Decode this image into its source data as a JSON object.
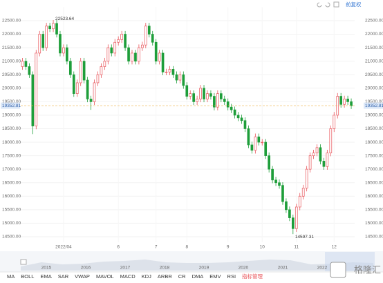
{
  "chart_data": {
    "type": "candlestick",
    "adjust_label": "前复权",
    "up_color": "#e8545a",
    "down_color": "#1e9e3a",
    "ylim": [
      14300,
      23000
    ],
    "yticks": [
      {
        "value": 14500,
        "label": "14500.00"
      },
      {
        "value": 15000,
        "label": "15000.00"
      },
      {
        "value": 15500,
        "label": "15500.00"
      },
      {
        "value": 16000,
        "label": "16000.00"
      },
      {
        "value": 16500,
        "label": "16500.00"
      },
      {
        "value": 17000,
        "label": "17000.00"
      },
      {
        "value": 17500,
        "label": "17500.00"
      },
      {
        "value": 18000,
        "label": "18000.00"
      },
      {
        "value": 18500,
        "label": "18500.00"
      },
      {
        "value": 19000,
        "label": "19000.00"
      },
      {
        "value": 19500,
        "label": "19500.00"
      },
      {
        "value": 20000,
        "label": "20000.00"
      },
      {
        "value": 20500,
        "label": "20500.00"
      },
      {
        "value": 21000,
        "label": "21000.00"
      },
      {
        "value": 21500,
        "label": "21500.00"
      },
      {
        "value": 22000,
        "label": "22000.00"
      },
      {
        "value": 22500,
        "label": "22500.00"
      }
    ],
    "xlim": [
      -0.5,
      97
    ],
    "xticks": [
      {
        "value": 12,
        "label": "2022/04"
      },
      {
        "value": 28,
        "label": "6"
      },
      {
        "value": 39,
        "label": "7"
      },
      {
        "value": 48,
        "label": "8"
      },
      {
        "value": 60,
        "label": "9"
      },
      {
        "value": 70,
        "label": "10"
      },
      {
        "value": 80,
        "label": "11"
      },
      {
        "value": 91,
        "label": "12"
      }
    ],
    "last_price": 19352.81,
    "high_index": 9,
    "low_index": 79,
    "ohlc": [
      [
        20800,
        21120,
        20680,
        21000
      ],
      [
        21000,
        21120,
        20680,
        20800
      ],
      [
        20800,
        20920,
        20380,
        20500
      ],
      [
        20500,
        20620,
        18300,
        18600
      ],
      [
        18600,
        21420,
        18480,
        21300
      ],
      [
        21300,
        22120,
        21180,
        22000
      ],
      [
        22000,
        22120,
        21380,
        21500
      ],
      [
        21500,
        22420,
        21380,
        22300
      ],
      [
        22300,
        22420,
        22080,
        22200
      ],
      [
        22200,
        22523.64,
        22080,
        22400
      ],
      [
        22400,
        22520,
        21880,
        22000
      ],
      [
        22000,
        22120,
        21180,
        21300
      ],
      [
        21300,
        21620,
        21180,
        21500
      ],
      [
        21500,
        21620,
        20880,
        21000
      ],
      [
        21000,
        21120,
        20380,
        20500
      ],
      [
        20500,
        20620,
        19680,
        19800
      ],
      [
        19800,
        20320,
        19680,
        20200
      ],
      [
        20200,
        21120,
        20080,
        21000
      ],
      [
        21000,
        21120,
        20180,
        20300
      ],
      [
        20300,
        20420,
        19480,
        19600
      ],
      [
        19600,
        19720,
        19200,
        19500
      ],
      [
        19500,
        20320,
        19380,
        20200
      ],
      [
        20200,
        20620,
        20080,
        20500
      ],
      [
        20500,
        20920,
        20380,
        20800
      ],
      [
        20800,
        21120,
        20680,
        21000
      ],
      [
        21000,
        21620,
        20880,
        21500
      ],
      [
        21500,
        21620,
        21180,
        21300
      ],
      [
        21300,
        21820,
        21180,
        21700
      ],
      [
        21700,
        21920,
        21580,
        21800
      ],
      [
        21800,
        22120,
        21680,
        22000
      ],
      [
        22000,
        22120,
        21380,
        21500
      ],
      [
        21500,
        21620,
        20880,
        21000
      ],
      [
        21000,
        21420,
        20880,
        21300
      ],
      [
        21300,
        21420,
        20880,
        21000
      ],
      [
        21000,
        21620,
        20880,
        21500
      ],
      [
        21500,
        21720,
        21380,
        21600
      ],
      [
        21600,
        22420,
        21480,
        22300
      ],
      [
        22300,
        22420,
        21880,
        22000
      ],
      [
        22000,
        22120,
        21580,
        21700
      ],
      [
        21700,
        21820,
        20880,
        21000
      ],
      [
        21000,
        21420,
        20880,
        21300
      ],
      [
        21300,
        21420,
        20480,
        20600
      ],
      [
        20600,
        20720,
        20480,
        20600
      ],
      [
        20600,
        20820,
        20480,
        20700
      ],
      [
        20700,
        20820,
        20380,
        20500
      ],
      [
        20500,
        20620,
        20180,
        20300
      ],
      [
        20300,
        20620,
        20180,
        20500
      ],
      [
        20500,
        20620,
        19980,
        20100
      ],
      [
        20100,
        20220,
        19580,
        19700
      ],
      [
        19700,
        19920,
        19580,
        19800
      ],
      [
        19800,
        19920,
        19380,
        19500
      ],
      [
        19500,
        19720,
        19380,
        19600
      ],
      [
        19600,
        20120,
        19480,
        20000
      ],
      [
        20000,
        20120,
        19480,
        19600
      ],
      [
        19600,
        19920,
        19480,
        19800
      ],
      [
        19800,
        19920,
        19580,
        19700
      ],
      [
        19700,
        19820,
        19180,
        19300
      ],
      [
        19300,
        19920,
        19180,
        19800
      ],
      [
        19800,
        19920,
        19480,
        19600
      ],
      [
        19600,
        19720,
        19380,
        19500
      ],
      [
        19500,
        19620,
        19180,
        19300
      ],
      [
        19300,
        19420,
        19080,
        19200
      ],
      [
        19200,
        19320,
        18880,
        19000
      ],
      [
        19000,
        19120,
        18780,
        18900
      ],
      [
        18900,
        19020,
        18680,
        18800
      ],
      [
        18800,
        18920,
        18380,
        18500
      ],
      [
        18500,
        18620,
        17780,
        17900
      ],
      [
        17900,
        18020,
        17580,
        17700
      ],
      [
        17700,
        18320,
        17580,
        18200
      ],
      [
        18200,
        18320,
        17880,
        18000
      ],
      [
        18000,
        18120,
        17880,
        18000
      ],
      [
        18000,
        18120,
        17380,
        17500
      ],
      [
        17500,
        17620,
        16880,
        17000
      ],
      [
        17000,
        17120,
        16480,
        16600
      ],
      [
        16600,
        16720,
        16380,
        16500
      ],
      [
        16500,
        16620,
        16280,
        16400
      ],
      [
        16400,
        16520,
        15680,
        15800
      ],
      [
        15800,
        15920,
        15380,
        15500
      ],
      [
        15500,
        15620,
        15080,
        15200
      ],
      [
        15200,
        15320,
        14597.31,
        14800
      ],
      [
        14800,
        15720,
        14680,
        15600
      ],
      [
        15600,
        16120,
        15480,
        16000
      ],
      [
        16000,
        16420,
        15880,
        16300
      ],
      [
        16300,
        17120,
        16180,
        17000
      ],
      [
        17000,
        17620,
        16880,
        17500
      ],
      [
        17500,
        17720,
        17380,
        17600
      ],
      [
        17600,
        17920,
        17480,
        17800
      ],
      [
        17800,
        17920,
        17180,
        17300
      ],
      [
        17300,
        17420,
        16980,
        17100
      ],
      [
        17100,
        17720,
        16980,
        17600
      ],
      [
        17600,
        18620,
        17480,
        18500
      ],
      [
        18500,
        19120,
        18380,
        19000
      ],
      [
        19000,
        19820,
        18880,
        19700
      ],
      [
        19700,
        19820,
        19280,
        19400
      ],
      [
        19400,
        19720,
        19280,
        19600
      ],
      [
        19600,
        19720,
        19380,
        19500
      ],
      [
        19500,
        19620,
        19230,
        19352.81
      ]
    ],
    "navigator_labels": [
      "2015",
      "2016",
      "2017",
      "2018",
      "2019",
      "2020",
      "2021",
      "2022"
    ],
    "indicators": [
      "MA",
      "BOLL",
      "EMA",
      "SAR",
      "VWAP",
      "MAVOL",
      "MACD",
      "KDJ",
      "ARBR",
      "CR",
      "DMA",
      "EMV",
      "RSI",
      "指标管理"
    ],
    "logo": "格隆汇"
  }
}
